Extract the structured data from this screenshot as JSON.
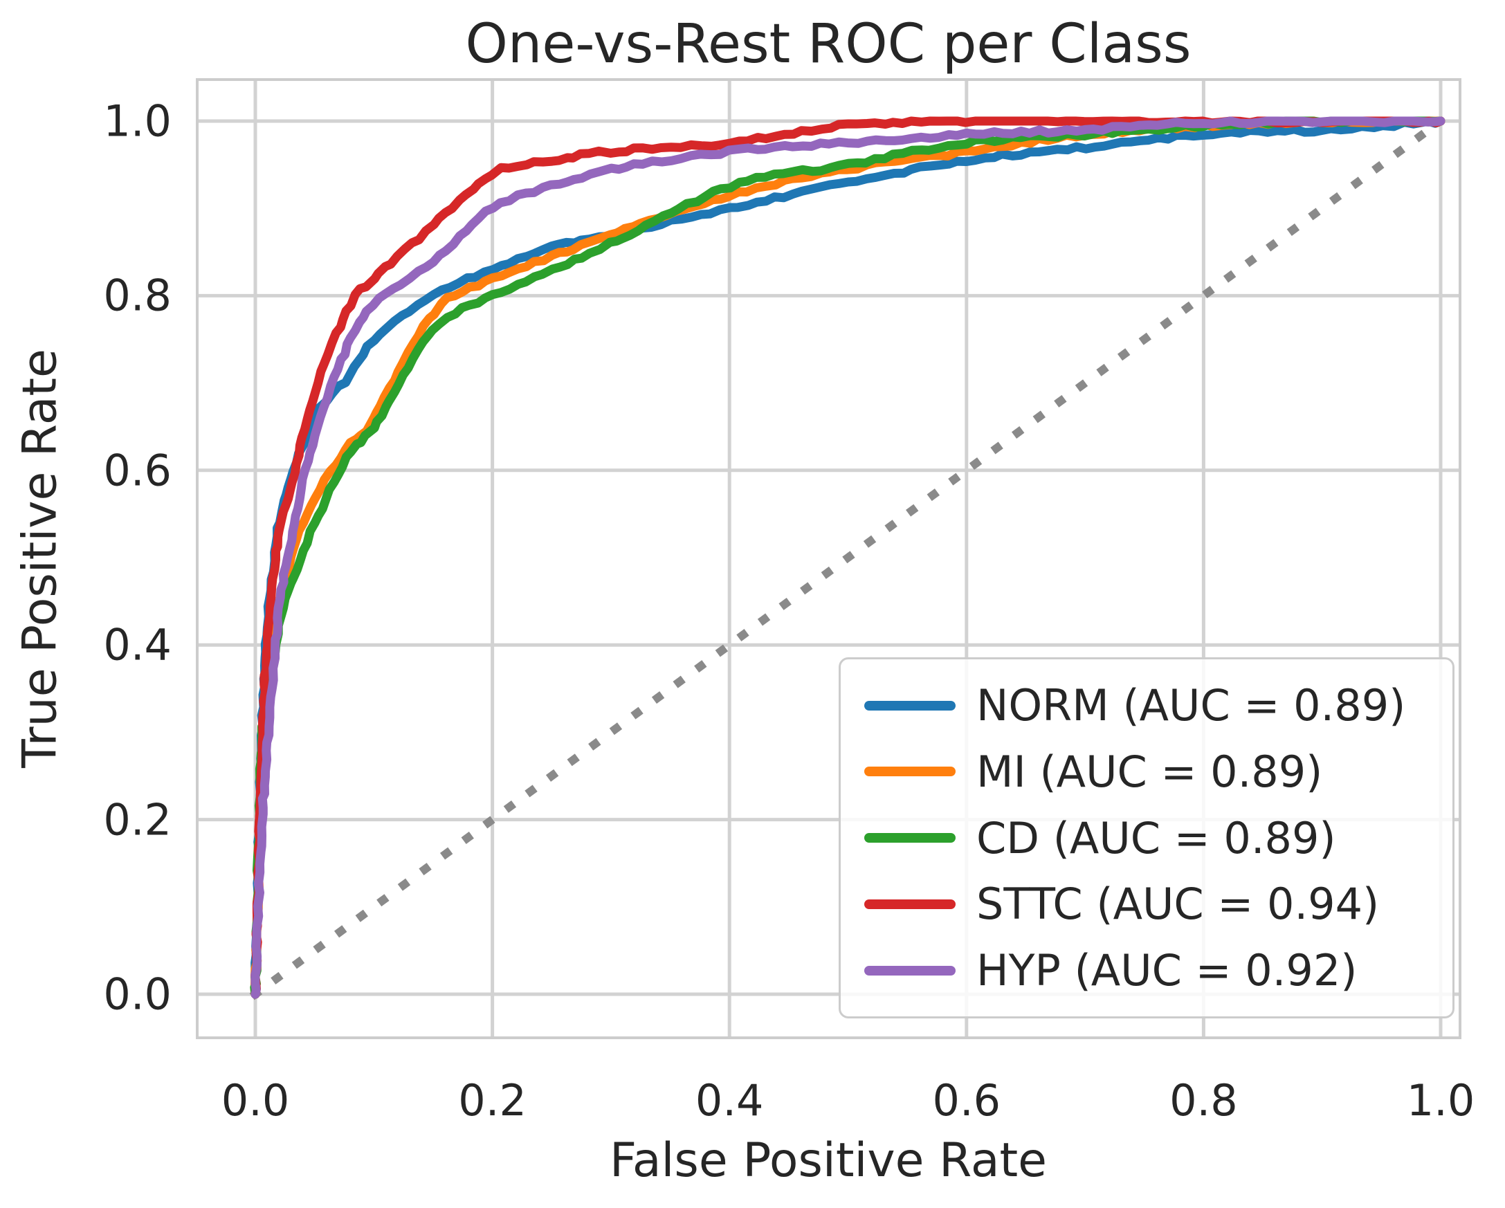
{
  "chart": {
    "title": "One-vs-Rest ROC per Class",
    "xlabel": "False Positive Rate",
    "ylabel": "True Positive Rate"
  },
  "colors": {
    "background": "#ffffff",
    "grid": "#d2d2d2",
    "spine": "#cccccc",
    "text": "#262626",
    "diagonal": "#8a8a8a",
    "legend_border": "#cccccc"
  },
  "chart_data": {
    "type": "line",
    "title": "One-vs-Rest ROC per Class",
    "xlabel": "False Positive Rate",
    "ylabel": "True Positive Rate",
    "xlim": [
      0.0,
      1.0
    ],
    "ylim": [
      0.0,
      1.0
    ],
    "grid": true,
    "legend_position": "lower right",
    "x_ticks": [
      0.0,
      0.2,
      0.4,
      0.6,
      0.8,
      1.0
    ],
    "y_ticks": [
      0.0,
      0.2,
      0.4,
      0.6,
      0.8,
      1.0
    ],
    "x_tick_labels": [
      "0.0",
      "0.2",
      "0.4",
      "0.6",
      "0.8",
      "1.0"
    ],
    "y_tick_labels": [
      "0.0",
      "0.2",
      "0.4",
      "0.6",
      "0.8",
      "1.0"
    ],
    "diagonal_reference": {
      "style": "dotted",
      "color": "#8a8a8a",
      "from": [
        0.0,
        0.0
      ],
      "to": [
        1.0,
        1.0
      ]
    },
    "series": [
      {
        "name": "NORM",
        "auc": 0.89,
        "label": "NORM (AUC = 0.89)",
        "color": "#1f77b4",
        "fpr": [
          0,
          0.005,
          0.01,
          0.02,
          0.03,
          0.05,
          0.08,
          0.1,
          0.15,
          0.2,
          0.25,
          0.3,
          0.4,
          0.5,
          0.6,
          0.7,
          0.8,
          0.9,
          1.0
        ],
        "tpr": [
          0,
          0.28,
          0.42,
          0.54,
          0.59,
          0.66,
          0.71,
          0.75,
          0.8,
          0.83,
          0.855,
          0.87,
          0.9,
          0.93,
          0.955,
          0.97,
          0.985,
          0.99,
          1.0
        ]
      },
      {
        "name": "MI",
        "auc": 0.89,
        "label": "MI (AUC = 0.89)",
        "color": "#ff7f0e",
        "fpr": [
          0,
          0.005,
          0.01,
          0.02,
          0.03,
          0.05,
          0.08,
          0.1,
          0.15,
          0.2,
          0.25,
          0.3,
          0.4,
          0.5,
          0.6,
          0.7,
          0.8,
          0.9,
          1.0
        ],
        "tpr": [
          0,
          0.22,
          0.33,
          0.44,
          0.5,
          0.57,
          0.63,
          0.66,
          0.78,
          0.82,
          0.845,
          0.87,
          0.915,
          0.945,
          0.965,
          0.985,
          0.995,
          1.0,
          1.0
        ]
      },
      {
        "name": "CD",
        "auc": 0.89,
        "label": "CD (AUC = 0.89)",
        "color": "#2ca02c",
        "fpr": [
          0,
          0.005,
          0.01,
          0.02,
          0.03,
          0.05,
          0.08,
          0.1,
          0.15,
          0.2,
          0.25,
          0.3,
          0.4,
          0.5,
          0.6,
          0.7,
          0.8,
          0.9,
          1.0
        ],
        "tpr": [
          0,
          0.28,
          0.32,
          0.42,
          0.47,
          0.54,
          0.62,
          0.65,
          0.76,
          0.8,
          0.83,
          0.86,
          0.925,
          0.95,
          0.975,
          0.985,
          0.995,
          1.0,
          1.0
        ]
      },
      {
        "name": "STTC",
        "auc": 0.94,
        "label": "STTC (AUC = 0.94)",
        "color": "#d62728",
        "fpr": [
          0,
          0.005,
          0.01,
          0.02,
          0.03,
          0.05,
          0.08,
          0.1,
          0.15,
          0.2,
          0.25,
          0.3,
          0.4,
          0.5,
          0.6,
          0.7,
          0.8,
          0.9,
          1.0
        ],
        "tpr": [
          0,
          0.25,
          0.4,
          0.53,
          0.58,
          0.69,
          0.79,
          0.82,
          0.88,
          0.94,
          0.955,
          0.965,
          0.975,
          0.995,
          1.0,
          1.0,
          1.0,
          1.0,
          1.0
        ]
      },
      {
        "name": "HYP",
        "auc": 0.92,
        "label": "HYP (AUC = 0.92)",
        "color": "#9467bd",
        "fpr": [
          0,
          0.005,
          0.01,
          0.02,
          0.03,
          0.05,
          0.08,
          0.1,
          0.15,
          0.2,
          0.25,
          0.3,
          0.4,
          0.5,
          0.6,
          0.7,
          0.8,
          0.9,
          1.0
        ],
        "tpr": [
          0,
          0.18,
          0.28,
          0.44,
          0.52,
          0.64,
          0.75,
          0.79,
          0.84,
          0.9,
          0.925,
          0.945,
          0.965,
          0.975,
          0.985,
          0.99,
          0.998,
          1.0,
          1.0
        ]
      }
    ]
  }
}
